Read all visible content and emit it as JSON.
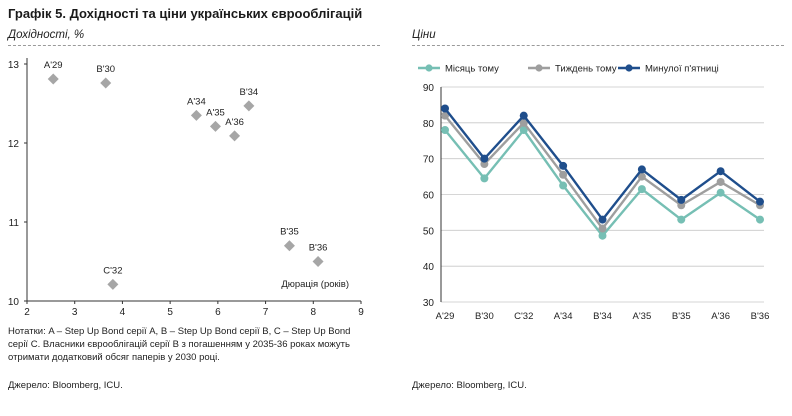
{
  "figure_title": "Графік 5. Дохідності та ціни українських єврооблігацій",
  "notes": "Нотатки: A – Step Up Bond серії A, B – Step Up Bond серії B, C – Step Up Bond серії C. Власники єврооблігацій серії B з погашенням у 2035-36 роках можуть отримати додатковий обсяг паперів у 2030 році.",
  "left_source": "Джерело: Bloomberg, ICU.",
  "right_source": "Джерело: Bloomberg, ICU.",
  "colors": {
    "marker": "#a6a6a6",
    "month": "#76bfb4",
    "week": "#9e9e9e",
    "friday": "#1f4e8c"
  },
  "chart_data": [
    {
      "type": "scatter",
      "title": "Дохідності, %",
      "xlabel": "Дюрація (років)",
      "ylabel": "",
      "xlim": [
        2,
        9
      ],
      "ylim": [
        10,
        13
      ],
      "xticks": [
        "2",
        "3",
        "4",
        "5",
        "6",
        "7",
        "8",
        "9"
      ],
      "yticks": [
        "10",
        "11",
        "12",
        "13"
      ],
      "grid": false,
      "marker": "diamond",
      "points": [
        {
          "label": "A'29",
          "x": 2.55,
          "y": 12.81
        },
        {
          "label": "B'30",
          "x": 3.65,
          "y": 12.76
        },
        {
          "label": "A'34",
          "x": 5.55,
          "y": 12.35
        },
        {
          "label": "A'35",
          "x": 5.95,
          "y": 12.21
        },
        {
          "label": "A'36",
          "x": 6.35,
          "y": 12.09
        },
        {
          "label": "B'34",
          "x": 6.65,
          "y": 12.47
        },
        {
          "label": "B'35",
          "x": 7.5,
          "y": 10.7
        },
        {
          "label": "B'36",
          "x": 8.1,
          "y": 10.5
        },
        {
          "label": "C'32",
          "x": 3.8,
          "y": 10.21
        }
      ]
    },
    {
      "type": "line",
      "title": "Ціни",
      "xlabel": "",
      "ylabel": "",
      "ylim": [
        30,
        90
      ],
      "yticks": [
        "30",
        "40",
        "50",
        "60",
        "70",
        "80",
        "90"
      ],
      "grid": true,
      "legend": "top",
      "categories": [
        "A'29",
        "B'30",
        "C'32",
        "A'34",
        "B'34",
        "A'35",
        "B'35",
        "A'36",
        "B'36"
      ],
      "series": [
        {
          "name": "Місяць тому",
          "values": [
            78,
            64.5,
            78,
            62.5,
            48.5,
            61.5,
            53,
            60.5,
            53
          ]
        },
        {
          "name": "Тиждень тому",
          "values": [
            82,
            68.5,
            80,
            65.5,
            50.5,
            65,
            57,
            63.5,
            57
          ]
        },
        {
          "name": "Минулої п'ятниці",
          "values": [
            84,
            70,
            82,
            68,
            53,
            67,
            58.5,
            66.5,
            58
          ]
        }
      ]
    }
  ]
}
